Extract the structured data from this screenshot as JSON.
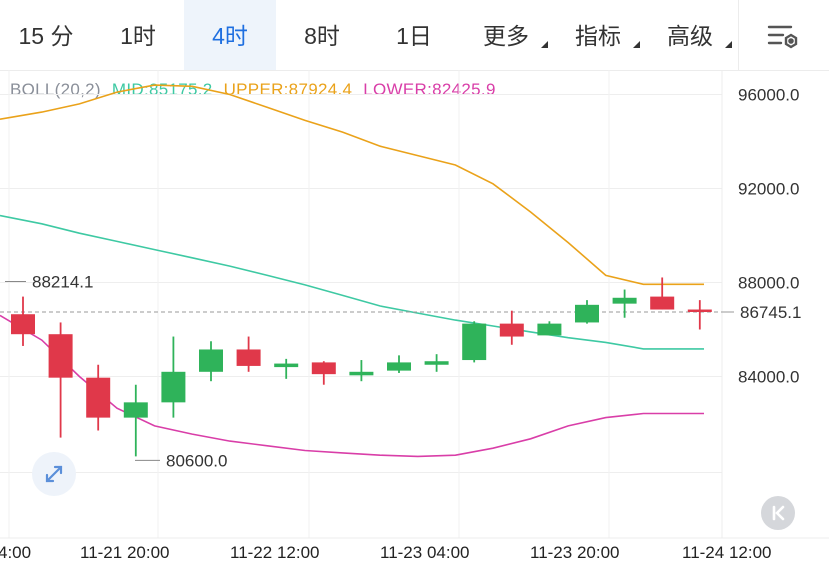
{
  "tabs": [
    {
      "label": "15 分",
      "active": false,
      "dropdown": false
    },
    {
      "label": "1时",
      "active": false,
      "dropdown": false
    },
    {
      "label": "4时",
      "active": true,
      "dropdown": false
    },
    {
      "label": "8时",
      "active": false,
      "dropdown": false
    },
    {
      "label": "1日",
      "active": false,
      "dropdown": false
    },
    {
      "label": "更多",
      "active": false,
      "dropdown": true
    },
    {
      "label": "指标",
      "active": false,
      "dropdown": true
    },
    {
      "label": "高级",
      "active": false,
      "dropdown": true
    }
  ],
  "settings_icon": "chart-settings-icon",
  "indicator": {
    "name": "BOLL(20,2)",
    "mid": "MID:85175.2",
    "upper": "UPPER:87924.4",
    "lower": "LOWER:82425.9"
  },
  "colors": {
    "up": "#2fb35a",
    "down": "#e0384a",
    "mid": "#3ec9a3",
    "upper": "#eaa21a",
    "lower": "#d93ea8",
    "accent": "#1f6fe0"
  },
  "chart_data": {
    "type": "candlestick",
    "y_ticks": [
      "96000.0",
      "92000.0",
      "88000.0",
      "84000.0"
    ],
    "x_ticks": [
      "4:00",
      "11-21 20:00",
      "11-22 12:00",
      "11-23 04:00",
      "11-23 20:00",
      "11-24 12:00"
    ],
    "ylim": [
      80000,
      98000
    ],
    "last_price": "86745.1",
    "last_price_value": 86745.1,
    "high_marker": {
      "label": "88214.1",
      "value": 88214.1
    },
    "low_marker": {
      "label": "80600.0",
      "value": 80600
    },
    "candles": [
      {
        "open": 86650,
        "close": 85800,
        "high": 87400,
        "low": 85300
      },
      {
        "open": 85800,
        "close": 83950,
        "high": 86300,
        "low": 81400
      },
      {
        "open": 83950,
        "close": 82250,
        "high": 84500,
        "low": 81700
      },
      {
        "open": 82250,
        "close": 82900,
        "high": 83650,
        "low": 80600
      },
      {
        "open": 82900,
        "close": 84200,
        "high": 85700,
        "low": 82250
      },
      {
        "open": 84200,
        "close": 85150,
        "high": 85500,
        "low": 83800
      },
      {
        "open": 85150,
        "close": 84450,
        "high": 85700,
        "low": 84200
      },
      {
        "open": 84400,
        "close": 84550,
        "high": 84750,
        "low": 83900
      },
      {
        "open": 84600,
        "close": 84100,
        "high": 84650,
        "low": 83650
      },
      {
        "open": 84050,
        "close": 84200,
        "high": 84700,
        "low": 83800
      },
      {
        "open": 84250,
        "close": 84600,
        "high": 84900,
        "low": 84150
      },
      {
        "open": 84500,
        "close": 84650,
        "high": 84950,
        "low": 84200
      },
      {
        "open": 84700,
        "close": 86250,
        "high": 86350,
        "low": 84600
      },
      {
        "open": 86250,
        "close": 85700,
        "high": 86800,
        "low": 85350
      },
      {
        "open": 85750,
        "close": 86250,
        "high": 86350,
        "low": 85750
      },
      {
        "open": 86300,
        "close": 87050,
        "high": 87250,
        "low": 86250
      },
      {
        "open": 87100,
        "close": 87350,
        "high": 87700,
        "low": 86500
      },
      {
        "open": 87400,
        "close": 86850,
        "high": 88214.1,
        "low": 86850
      },
      {
        "open": 86850,
        "close": 86745.1,
        "high": 87250,
        "low": 86000
      }
    ],
    "series": [
      {
        "values": [
          94950,
          95250,
          95600,
          96100,
          96400,
          96350,
          96000,
          95450,
          94900,
          94400,
          93800,
          93400,
          93000,
          92200,
          91000,
          89700,
          88300,
          87924.4,
          87924.4
        ]
      },
      {
        "values": [
          90850,
          90500,
          90100,
          89750,
          89400,
          89050,
          88700,
          88300,
          87900,
          87450,
          87000,
          86700,
          86400,
          86150,
          85900,
          85650,
          85450,
          85175.2,
          85175.2
        ]
      },
      {
        "values": [
          86600,
          85550,
          84000,
          82650,
          81900,
          81550,
          81250,
          81050,
          80850,
          80750,
          80650,
          80600,
          80650,
          80950,
          81350,
          81900,
          82250,
          82425.9,
          82425.9
        ]
      }
    ]
  }
}
